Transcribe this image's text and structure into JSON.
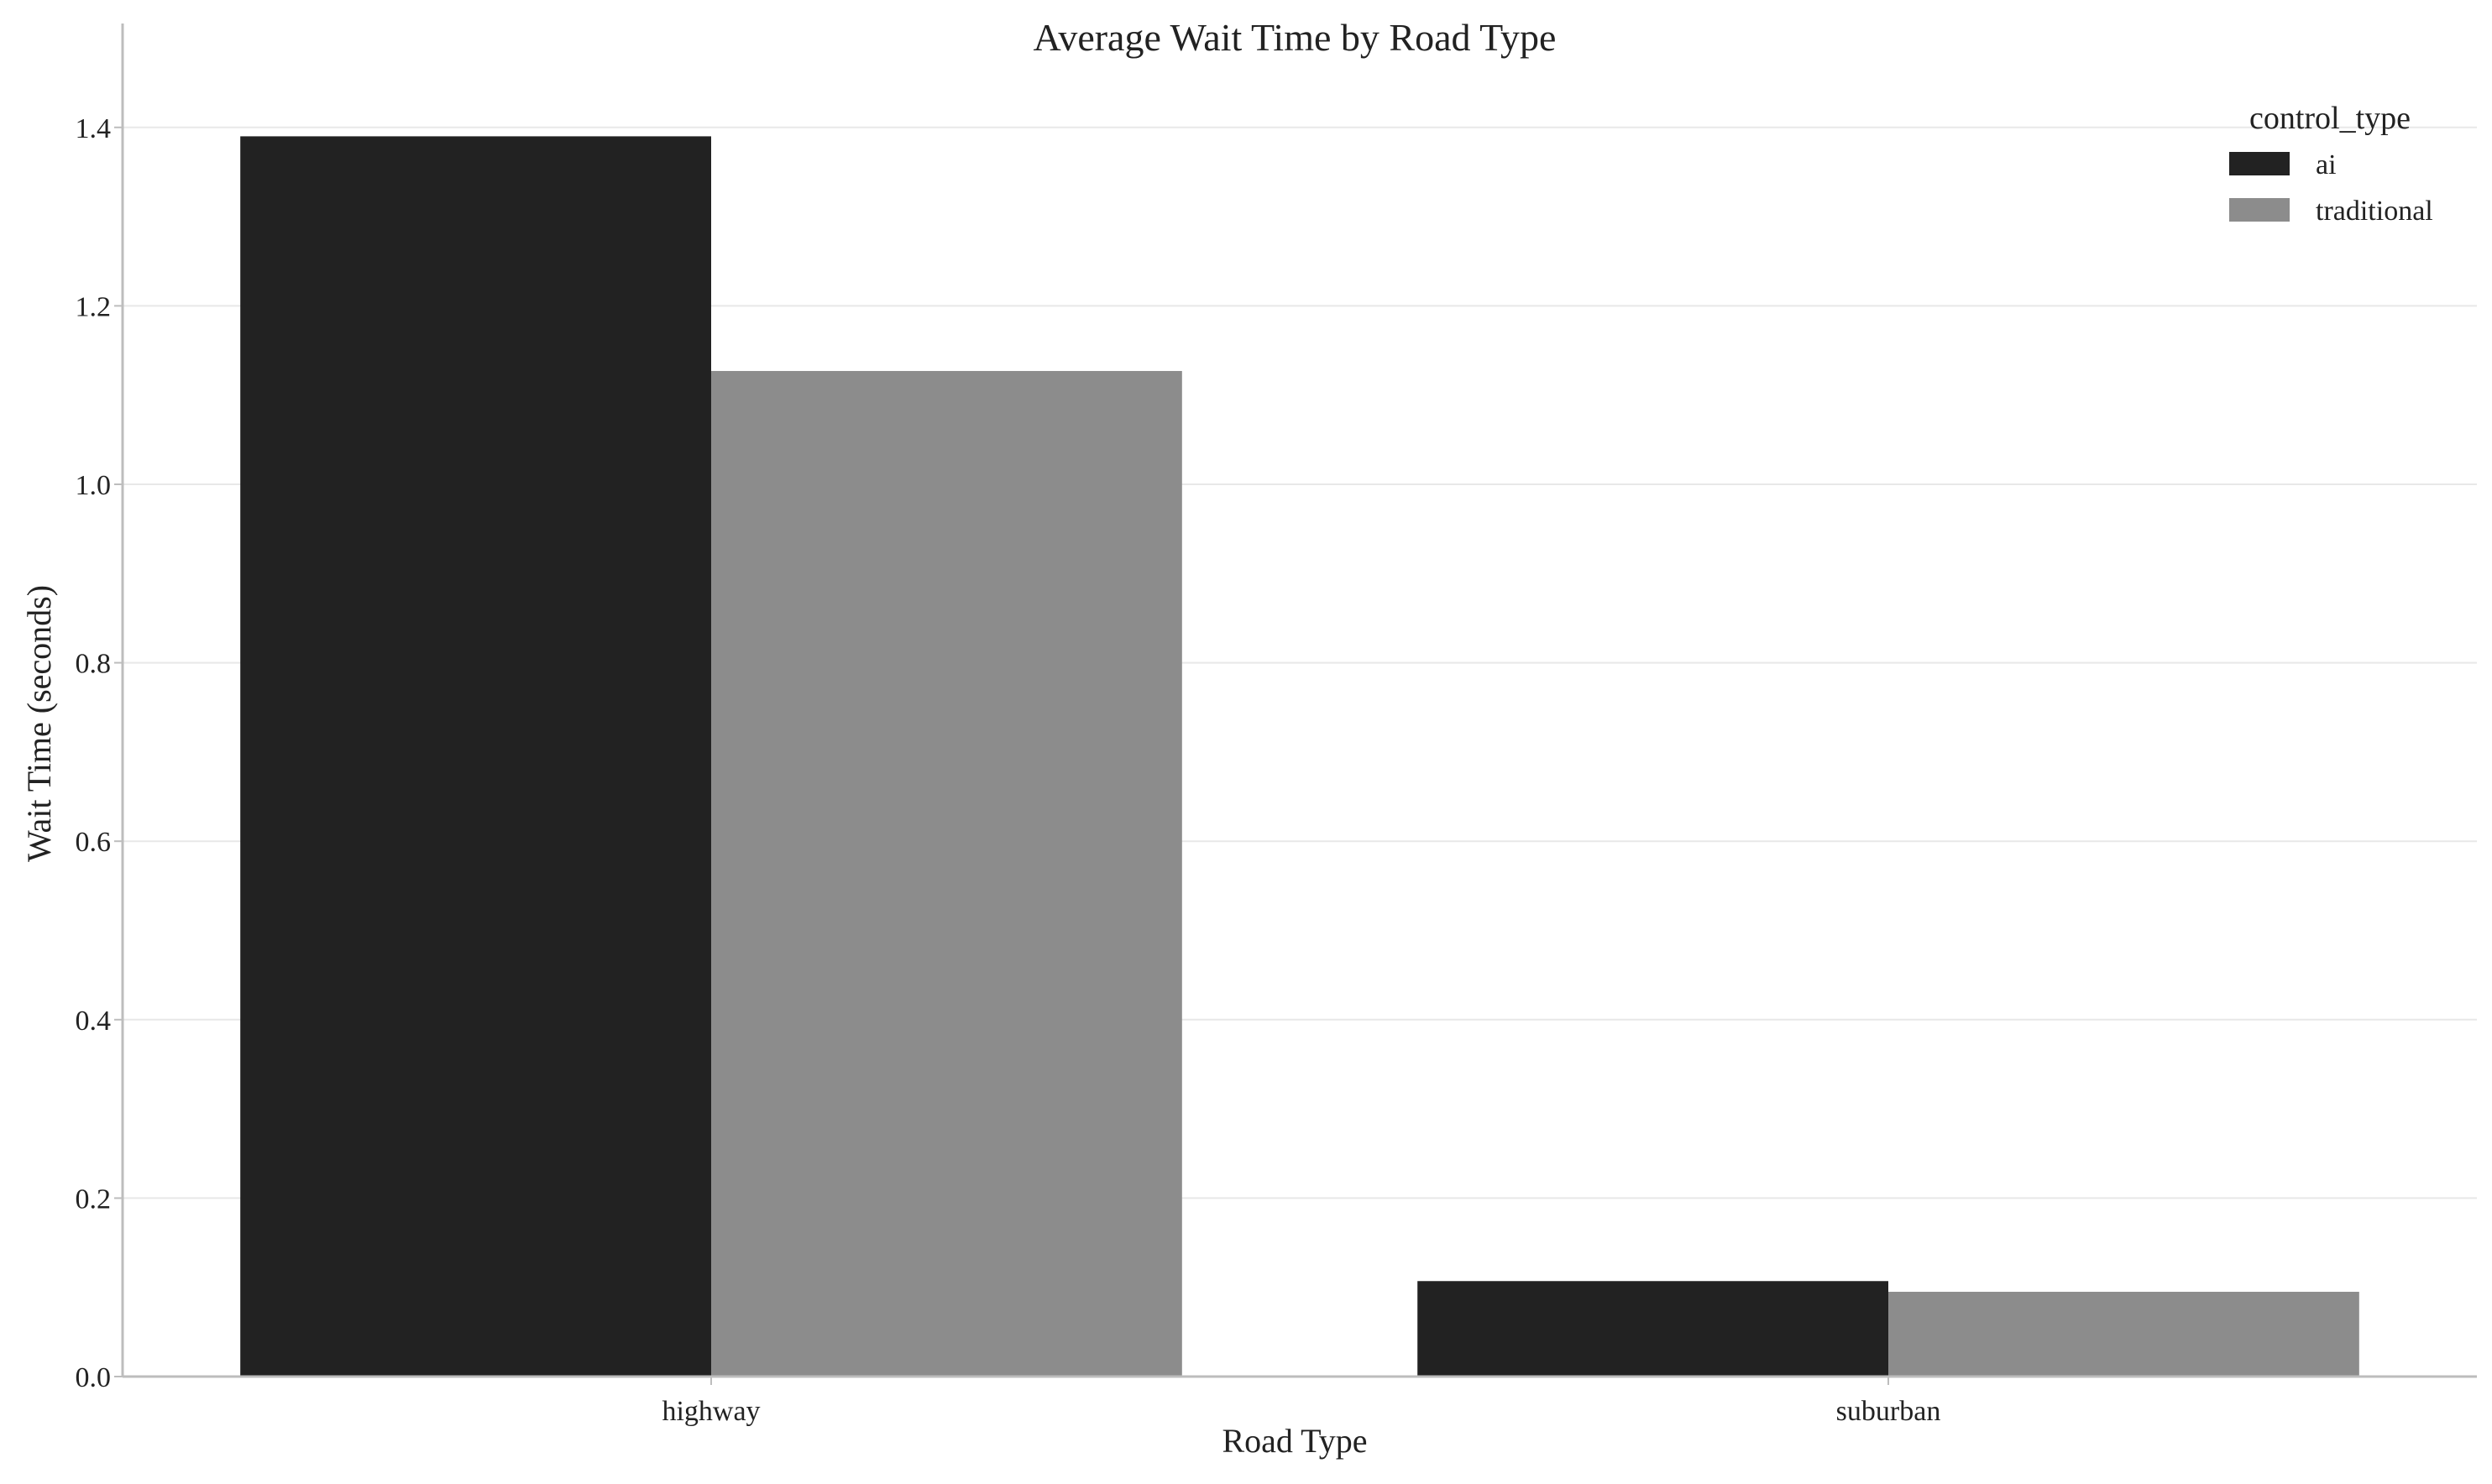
{
  "chart_data": {
    "type": "bar",
    "title": "Average Wait Time by Road Type",
    "xlabel": "Road Type",
    "ylabel": "Wait Time (seconds)",
    "categories": [
      "highway",
      "suburban"
    ],
    "series": [
      {
        "name": "ai",
        "values": [
          1.39,
          0.107
        ],
        "color": "#222222"
      },
      {
        "name": "traditional",
        "values": [
          1.127,
          0.095
        ],
        "color": "#8c8c8c"
      }
    ],
    "ylim": [
      0,
      1.46
    ],
    "yticks": [
      0.0,
      0.2,
      0.4,
      0.6,
      0.8,
      1.0,
      1.2,
      1.4
    ],
    "ytick_labels": [
      "0.0",
      "0.2",
      "0.4",
      "0.6",
      "0.8",
      "1.0",
      "1.2",
      "1.4"
    ],
    "grid": "horizontal",
    "legend": {
      "title": "control_type",
      "placement": "top-right"
    }
  }
}
